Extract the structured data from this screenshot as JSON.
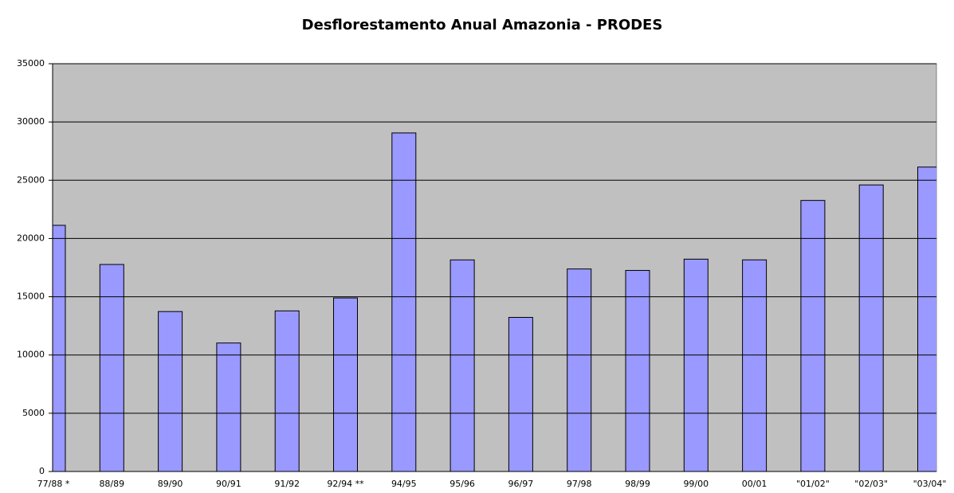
{
  "chart_data": {
    "type": "bar",
    "title": "Desflorestamento Anual Amazonia - PRODES",
    "categories": [
      "77/88 *",
      "88/89",
      "89/90",
      "90/91",
      "91/92",
      "92/94 **",
      "94/95",
      "95/96",
      "96/97",
      "97/98",
      "98/99",
      "99/00",
      "00/01",
      "\"01/02\"",
      "\"02/03\"",
      "\"03/04\""
    ],
    "values": [
      21130,
      17770,
      13730,
      11030,
      13786,
      14896,
      29059,
      18161,
      13227,
      17383,
      17259,
      18226,
      18165,
      23266,
      24597,
      26130
    ],
    "color": "#9999ff",
    "ylim": [
      0,
      35000
    ],
    "yticks": [
      0,
      5000,
      10000,
      15000,
      20000,
      25000,
      30000,
      35000
    ],
    "grid": true
  }
}
